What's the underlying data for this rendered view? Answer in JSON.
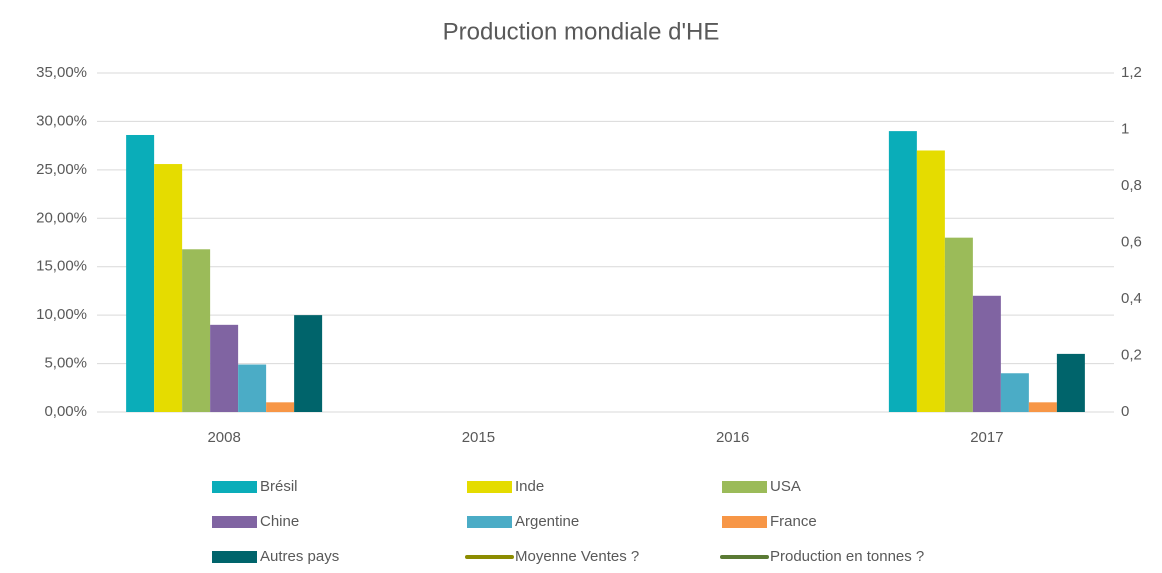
{
  "chart_data": {
    "type": "bar",
    "title": "Production mondiale d'HE",
    "categories": [
      "2008",
      "2015",
      "2016",
      "2017"
    ],
    "series": [
      {
        "name": "Brésil",
        "color": "#0aadb9",
        "values": [
          28.6,
          null,
          null,
          29
        ]
      },
      {
        "name": "Inde",
        "color": "#e5dc00",
        "values": [
          25.6,
          null,
          null,
          27
        ]
      },
      {
        "name": "USA",
        "color": "#9bbb59",
        "values": [
          16.8,
          null,
          null,
          18
        ]
      },
      {
        "name": "Chine",
        "color": "#8064a2",
        "values": [
          9,
          null,
          null,
          12
        ]
      },
      {
        "name": "Argentine",
        "color": "#4bacc6",
        "values": [
          4.9,
          null,
          null,
          4
        ]
      },
      {
        "name": "France",
        "color": "#f79646",
        "values": [
          1,
          null,
          null,
          1
        ]
      },
      {
        "name": "Autres pays",
        "color": "#00646b",
        "values": [
          10,
          null,
          null,
          6
        ]
      },
      {
        "name": "Moyenne Ventes ?",
        "color": "#8c8c00",
        "type": "line",
        "axis": "y2",
        "values": [
          null,
          null,
          null,
          null
        ]
      },
      {
        "name": "Production en tonnes ?",
        "color": "#5a7a34",
        "type": "line",
        "axis": "y2",
        "values": [
          null,
          null,
          null,
          null
        ]
      }
    ],
    "ylim": [
      0,
      35
    ],
    "yticks": [
      {
        "value": 0,
        "label": "0,00%"
      },
      {
        "value": 5,
        "label": "5,00%"
      },
      {
        "value": 10,
        "label": "10,00%"
      },
      {
        "value": 15,
        "label": "15,00%"
      },
      {
        "value": 20,
        "label": "20,00%"
      },
      {
        "value": 25,
        "label": "25,00%"
      },
      {
        "value": 30,
        "label": "30,00%"
      },
      {
        "value": 35,
        "label": "35,00%"
      }
    ],
    "y2lim": [
      0,
      1.2
    ],
    "y2ticks": [
      0,
      {
        "value": 0.2,
        "label": "0,2"
      },
      {
        "value": 0.4,
        "label": "0,4"
      },
      {
        "value": 0.6,
        "label": "0,6"
      },
      {
        "value": 0.8,
        "label": "0,8"
      },
      1,
      {
        "value": 1.2,
        "label": "1,2"
      }
    ],
    "grid": true,
    "legend": "bottom"
  }
}
